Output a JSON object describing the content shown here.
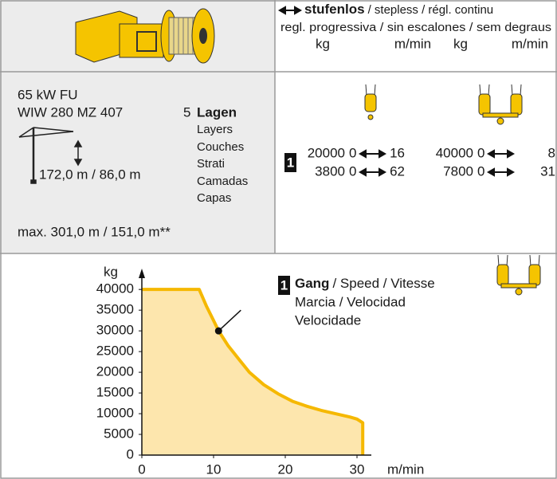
{
  "header": {
    "bold": "stufenlos",
    "rest": "/ stepless / régl. continu",
    "line2": "regl. progressiva / sin escalones / sem degraus",
    "columns": [
      "kg",
      "m/min",
      "kg",
      "m/min"
    ]
  },
  "specs": {
    "power": "65 kW FU",
    "model": "WIW 280 MZ 407",
    "layers_count": "5",
    "layers_title": "Lagen",
    "layers_translations": [
      "Layers",
      "Couches",
      "Strati",
      "Camadas",
      "Capas"
    ],
    "height": "172,0 m / 86,0 m",
    "max": "max. 301,0 m / 151,0 m**"
  },
  "table": {
    "gear": "1",
    "rows": [
      [
        "20000",
        "0",
        "16",
        "40000",
        "0",
        "8"
      ],
      [
        "3800",
        "0",
        "62",
        "7800",
        "0",
        "31"
      ]
    ]
  },
  "chart_data": {
    "type": "area",
    "x": [
      0,
      8,
      9,
      10,
      10.7,
      12,
      13.6,
      15,
      17,
      19,
      21,
      23,
      25,
      27,
      29,
      30,
      30.8,
      30.8
    ],
    "values": [
      40000,
      40000,
      36000,
      32500,
      30000,
      26500,
      23000,
      20000,
      17000,
      14800,
      13000,
      11800,
      10800,
      10000,
      9200,
      8700,
      7800,
      0
    ],
    "color": "#f5b800",
    "fill": "#fde6ad",
    "xlim": [
      0,
      32
    ],
    "ylim": [
      0,
      43500
    ],
    "xticks": [
      0,
      10,
      20,
      30
    ],
    "yticks": [
      0,
      5000,
      10000,
      15000,
      20000,
      25000,
      30000,
      35000,
      40000
    ],
    "xlabel": "m/min",
    "ylabel": "kg",
    "annotation": {
      "badge": "1",
      "title": "Gang",
      "lines": [
        "/ Speed / Vitesse",
        "Marcia / Velocidad",
        "Velocidade"
      ],
      "x": 10.7,
      "y": 30000
    }
  }
}
